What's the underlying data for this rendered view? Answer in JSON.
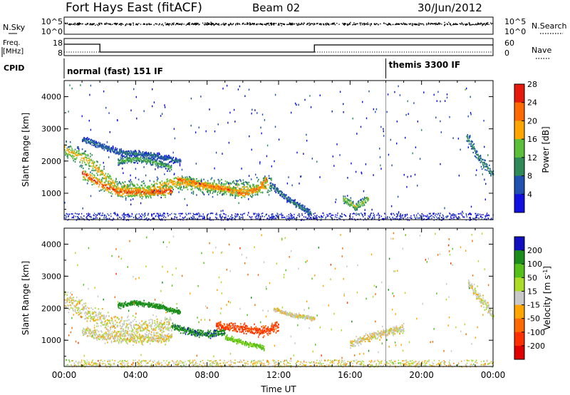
{
  "header": {
    "station": "Fort Hays East (fitACF)",
    "beam": "Beam 02",
    "date": "30/Jun/2012"
  },
  "side_labels": {
    "nsky": "N.Sky",
    "nsearch": "N.Search",
    "freq_line1": "Freq.",
    "freq_line2": "[MHz]",
    "nave": "Nave",
    "cpid": "CPID"
  },
  "noise_panel": {
    "left_ticks": [
      "10^5",
      "10^0"
    ],
    "right_ticks": [
      "10^5",
      "10^0"
    ]
  },
  "freq_panel": {
    "left_ticks": [
      "18",
      "8"
    ],
    "right_ticks": [
      "60",
      "0"
    ]
  },
  "cpid_panel": {
    "modes": [
      {
        "label": "normal (fast) 151 IF",
        "start_hour": 0,
        "end_hour": 18
      },
      {
        "label": "themis 3300 IF",
        "start_hour": 18,
        "end_hour": 24
      }
    ]
  },
  "chart_data": [
    {
      "type": "heatmap",
      "name": "power",
      "ylabel": "Slant Range [km]",
      "xlabel": "",
      "ylim": [
        180,
        4500
      ],
      "yticks": [
        "1000",
        "2000",
        "3000",
        "4000"
      ],
      "colorbar": {
        "label": "Power [dB]",
        "ticks": [
          "4",
          "8",
          "12",
          "16",
          "20",
          "24",
          "28"
        ],
        "colors": [
          "#1010e0",
          "#2050b0",
          "#2e8b57",
          "#5cbf3c",
          "#ffa500",
          "#ff6a00",
          "#e61a0a"
        ],
        "range": [
          0,
          30
        ]
      },
      "bands": [
        {
          "x": [
            0,
            1.5,
            3,
            4.5,
            6,
            7.5,
            9,
            10.5,
            11.6
          ],
          "y": [
            2400,
            1950,
            1180,
            1120,
            1350,
            1250,
            1200,
            1150,
            1300
          ],
          "width": 250,
          "dB": 20
        },
        {
          "x": [
            1,
            2,
            3,
            4.5,
            6
          ],
          "y": [
            1650,
            1300,
            1080,
            1050,
            1100
          ],
          "width": 170,
          "dB": 27
        },
        {
          "x": [
            6.3,
            7.2,
            8,
            9,
            10,
            10.8,
            11.3
          ],
          "y": [
            1450,
            1350,
            1250,
            1150,
            1000,
            1150,
            1450
          ],
          "width": 140,
          "dB": 25
        },
        {
          "x": [
            3,
            4,
            5,
            6
          ],
          "y": [
            2000,
            2100,
            2000,
            1800
          ],
          "width": 110,
          "dB": 14
        },
        {
          "x": [
            1,
            3,
            5,
            6.5
          ],
          "y": [
            2700,
            2300,
            2200,
            2000
          ],
          "width": 90,
          "dB": 9
        },
        {
          "x": [
            11.5,
            12.6,
            13.8
          ],
          "y": [
            1300,
            800,
            400
          ],
          "width": 90,
          "dB": 10
        },
        {
          "x": [
            15.6,
            16.3,
            17
          ],
          "y": [
            850,
            600,
            850
          ],
          "width": 130,
          "dB": 17
        },
        {
          "x": [
            22.5,
            23.2,
            24
          ],
          "y": [
            2800,
            2100,
            1600
          ],
          "width": 170,
          "dB": 11
        }
      ]
    },
    {
      "type": "heatmap",
      "name": "velocity",
      "ylabel": "Slant Range [km]",
      "xlabel": "Time UT",
      "ylim": [
        180,
        4500
      ],
      "xlim": [
        0,
        24
      ],
      "yticks": [
        "1000",
        "2000",
        "3000",
        "4000"
      ],
      "xticks": [
        "00:00",
        "04:00",
        "08:00",
        "12:00",
        "16:00",
        "20:00",
        "00:00"
      ],
      "colorbar": {
        "label": "Velocity [m s",
        "label_sup": "-1",
        "label_end": "]",
        "ticks": [
          "200",
          "100",
          "50",
          "15",
          "-15",
          "-50",
          "-100",
          "-200"
        ],
        "colors": [
          "#1010c0",
          "#1a8c1a",
          "#55c01a",
          "#aadc28",
          "#c8c8c8",
          "#ffa500",
          "#ff6a00",
          "#ff3000",
          "#e00000"
        ],
        "range": [
          -250,
          250
        ]
      },
      "bands": [
        {
          "x": [
            0,
            1.5,
            3,
            4.5,
            6
          ],
          "y": [
            2300,
            1800,
            1450,
            1400,
            1500
          ],
          "width": 300,
          "v": 0
        },
        {
          "x": [
            1,
            2.5,
            4,
            6
          ],
          "y": [
            1300,
            1100,
            1050,
            1100
          ],
          "width": 150,
          "v": 0
        },
        {
          "x": [
            6,
            7,
            8,
            9
          ],
          "y": [
            1450,
            1300,
            1200,
            1300
          ],
          "width": 110,
          "v": 180
        },
        {
          "x": [
            8.5,
            9.8,
            11,
            12
          ],
          "y": [
            1500,
            1400,
            1300,
            1450
          ],
          "width": 140,
          "v": -110
        },
        {
          "x": [
            9,
            10.2,
            11.2
          ],
          "y": [
            1100,
            920,
            780
          ],
          "width": 70,
          "v": 60
        },
        {
          "x": [
            11.7,
            12.7,
            14
          ],
          "y": [
            2000,
            1800,
            1700
          ],
          "width": 60,
          "v": 0
        },
        {
          "x": [
            16,
            17.5,
            19
          ],
          "y": [
            900,
            1200,
            1400
          ],
          "width": 120,
          "v": 0
        },
        {
          "x": [
            22.6,
            23.3,
            24
          ],
          "y": [
            2800,
            2300,
            1800
          ],
          "width": 180,
          "v": 5
        },
        {
          "x": [
            3,
            4,
            5,
            6.5
          ],
          "y": [
            2100,
            2200,
            2100,
            1900
          ],
          "width": 80,
          "v": 140
        }
      ]
    }
  ]
}
